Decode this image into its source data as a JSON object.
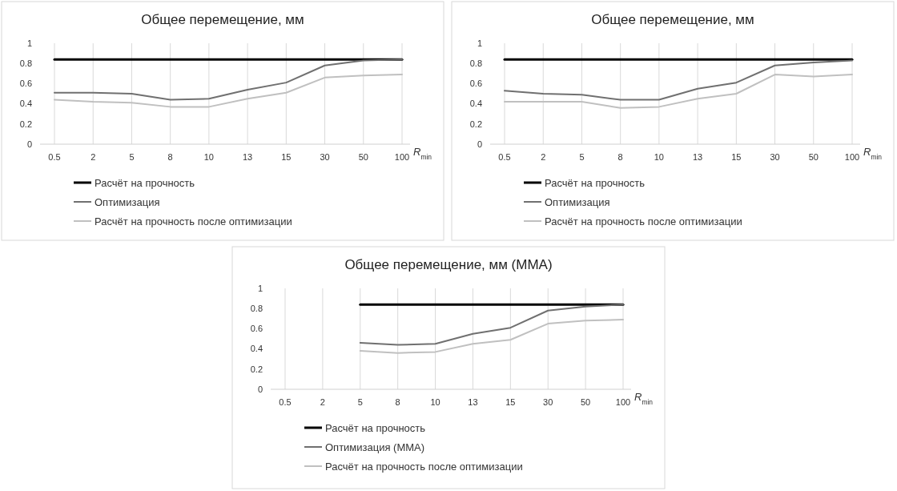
{
  "chart_data": [
    {
      "type": "line",
      "title": "Общее перемещение, мм",
      "xlabel": "R$_{min}$",
      "categories": [
        "0.5",
        "2",
        "5",
        "8",
        "10",
        "13",
        "15",
        "30",
        "50",
        "100"
      ],
      "ylim": [
        0,
        1
      ],
      "yticks": [
        0,
        0.2,
        0.4,
        0.6,
        0.8,
        1
      ],
      "grid": "x",
      "legend": "bottom",
      "series": [
        {
          "name": "Расчёт на прочность",
          "color": "#000000",
          "values": [
            0.84,
            0.84,
            0.84,
            0.84,
            0.84,
            0.84,
            0.84,
            0.84,
            0.84,
            0.84
          ]
        },
        {
          "name": "Оптимизация",
          "color": "#707070",
          "values": [
            0.51,
            0.51,
            0.5,
            0.44,
            0.45,
            0.54,
            0.61,
            0.78,
            0.83,
            0.84
          ]
        },
        {
          "name": "Расчёт на прочность после оптимизации",
          "color": "#c0c0c0",
          "values": [
            0.44,
            0.42,
            0.41,
            0.37,
            0.37,
            0.45,
            0.51,
            0.66,
            0.68,
            0.69
          ]
        }
      ]
    },
    {
      "type": "line",
      "title": "Общее перемещение, мм",
      "xlabel": "R$_{min}$",
      "categories": [
        "0.5",
        "2",
        "5",
        "8",
        "10",
        "13",
        "15",
        "30",
        "50",
        "100"
      ],
      "ylim": [
        0,
        1
      ],
      "yticks": [
        0,
        0.2,
        0.4,
        0.6,
        0.8,
        1
      ],
      "grid": "x",
      "legend": "bottom",
      "series": [
        {
          "name": "Расчёт на прочность",
          "color": "#000000",
          "values": [
            0.84,
            0.84,
            0.84,
            0.84,
            0.84,
            0.84,
            0.84,
            0.84,
            0.84,
            0.84
          ]
        },
        {
          "name": "Оптимизация",
          "color": "#707070",
          "values": [
            0.53,
            0.5,
            0.49,
            0.44,
            0.44,
            0.55,
            0.61,
            0.78,
            0.81,
            0.83
          ]
        },
        {
          "name": "Расчёт на прочность после оптимизации",
          "color": "#c0c0c0",
          "values": [
            0.42,
            0.42,
            0.42,
            0.36,
            0.37,
            0.45,
            0.5,
            0.69,
            0.67,
            0.69
          ]
        }
      ]
    },
    {
      "type": "line",
      "title": "Общее перемещение, мм (MMA)",
      "xlabel": "R$_{min}$",
      "categories": [
        "0.5",
        "2",
        "5",
        "8",
        "10",
        "13",
        "15",
        "30",
        "50",
        "100"
      ],
      "ylim": [
        0,
        1
      ],
      "yticks": [
        0,
        0.2,
        0.4,
        0.6,
        0.8,
        1
      ],
      "grid": "x",
      "legend": "bottom",
      "series": [
        {
          "name": "Расчёт на прочность",
          "color": "#000000",
          "values": [
            null,
            null,
            0.84,
            0.84,
            0.84,
            0.84,
            0.84,
            0.84,
            0.84,
            0.84
          ]
        },
        {
          "name": "Оптимизация (MMA)",
          "color": "#707070",
          "values": [
            null,
            null,
            0.46,
            0.44,
            0.45,
            0.55,
            0.61,
            0.78,
            0.82,
            0.84
          ]
        },
        {
          "name": "Расчёт на прочность после оптимизации",
          "color": "#c0c0c0",
          "values": [
            null,
            null,
            0.38,
            0.36,
            0.37,
            0.45,
            0.49,
            0.65,
            0.68,
            0.69
          ]
        }
      ]
    }
  ]
}
